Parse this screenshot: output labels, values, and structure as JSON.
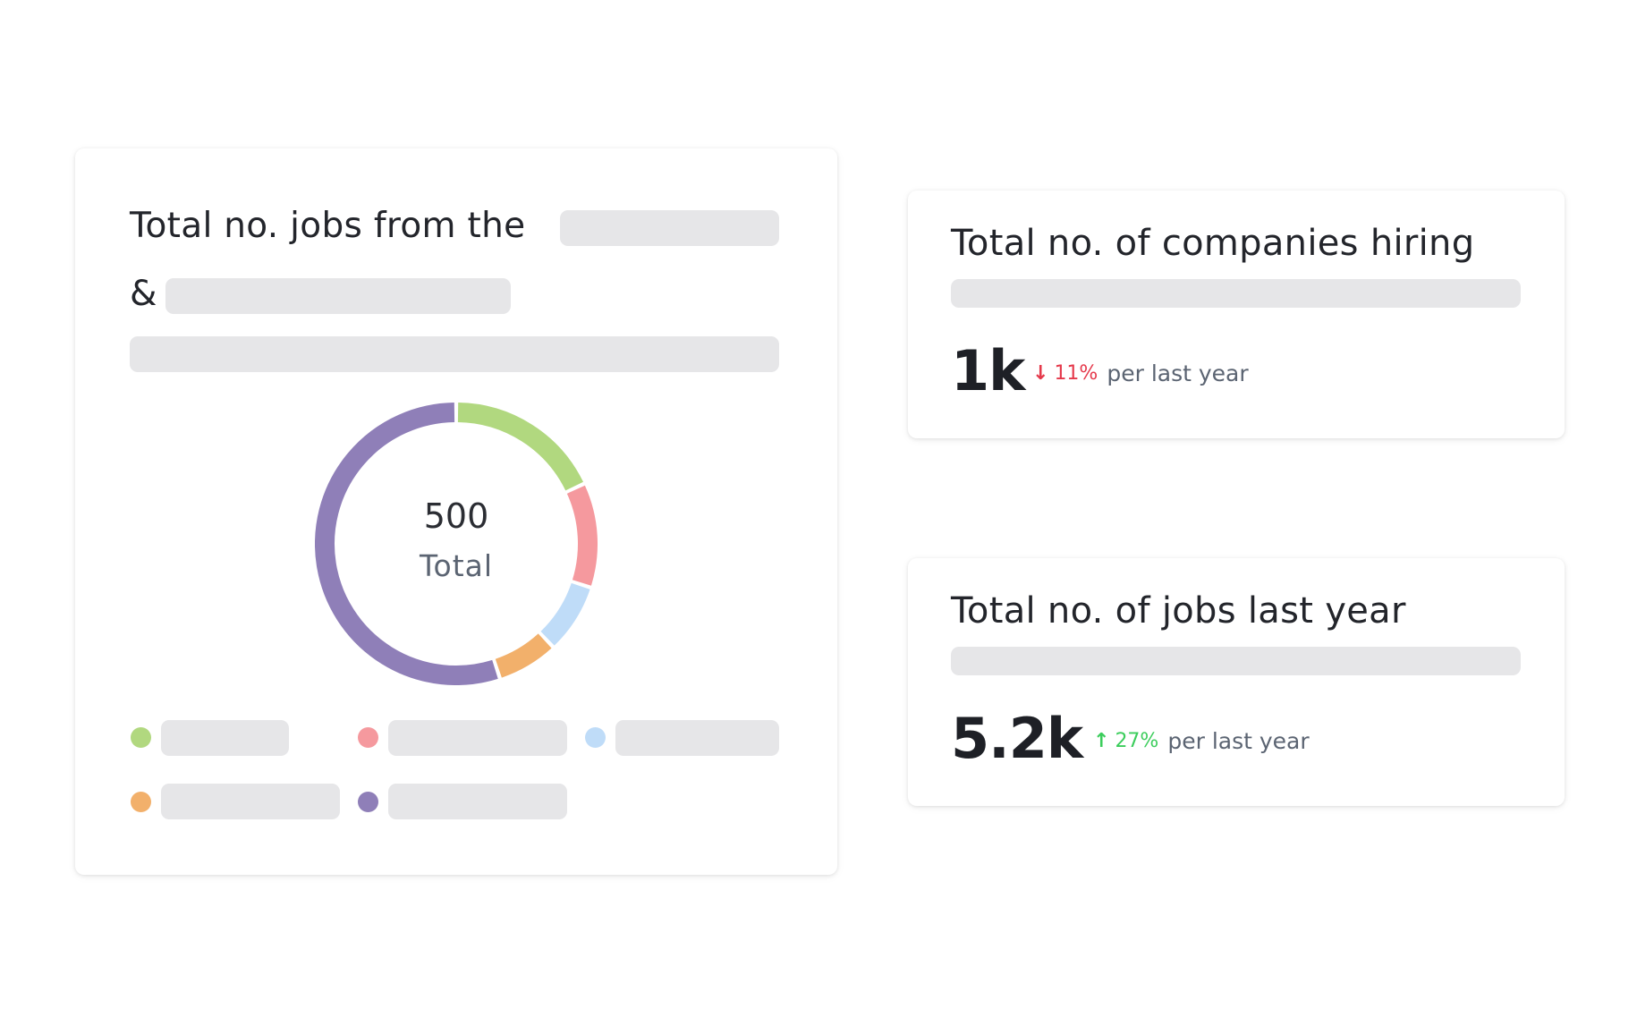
{
  "colors": {
    "accent_green": "#b1d87f",
    "accent_red": "#f5999e",
    "accent_blue": "#bfdcf8",
    "accent_orange": "#f2b06b",
    "accent_purple": "#8f7fb8",
    "negative": "#e5394b",
    "positive": "#3ccd5c"
  },
  "jobs_card": {
    "title_part1": "Total no. jobs from the",
    "title_part2": "&",
    "donut": {
      "total_value": "500",
      "total_label": "Total"
    },
    "legend": [
      {
        "color": "#b1d87f"
      },
      {
        "color": "#f5999e"
      },
      {
        "color": "#bfdcf8"
      },
      {
        "color": "#f2b06b"
      },
      {
        "color": "#8f7fb8"
      }
    ]
  },
  "companies_card": {
    "title": "Total no. of companies hiring",
    "value": "1k",
    "change_icon": "arrow-down-icon",
    "change_arrow": "↓",
    "change_pct": "11%",
    "change_period": "per last year"
  },
  "jobs_last_year_card": {
    "title": "Total no. of jobs last year",
    "value": "5.2k",
    "change_icon": "arrow-up-icon",
    "change_arrow": "↑",
    "change_pct": "27%",
    "change_period": "per last year"
  },
  "chart_data": {
    "type": "pie",
    "title": "",
    "center_text": [
      "500",
      "Total"
    ],
    "slices": [
      {
        "color": "#b1d87f",
        "fraction": 0.18
      },
      {
        "color": "#f5999e",
        "fraction": 0.12
      },
      {
        "color": "#bfdcf8",
        "fraction": 0.08
      },
      {
        "color": "#f2b06b",
        "fraction": 0.07
      },
      {
        "color": "#8f7fb8",
        "fraction": 0.55
      }
    ]
  }
}
